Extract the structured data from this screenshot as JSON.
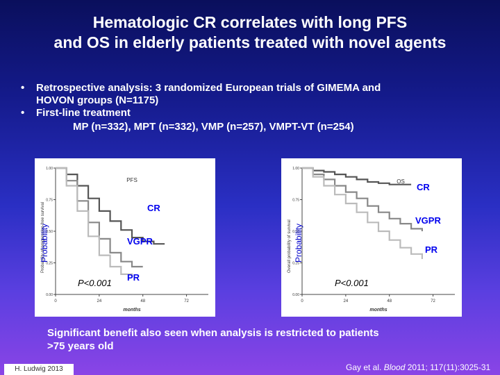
{
  "title_line1": "Hematologic CR correlates with long PFS",
  "title_line2": "and OS in elderly patients treated with novel agents",
  "bullets": {
    "b1_line1": "Retrospective analysis: 3 randomized European trials of GIMEMA and",
    "b1_line2": "HOVON groups (N=1175)",
    "b2": "First-line treatment",
    "b2_sub": "MP (n=332), MPT (n=332), VMP (n=257), VMPT-VT (n=254)"
  },
  "footer_line1": "Significant benefit also seen when analysis is restricted to patients",
  "footer_line2": ">75 years old",
  "author": "H. Ludwig 2013",
  "citation_pre": "Gay et al. ",
  "citation_journal": "Blood",
  "citation_post": " 2011; 117(11):3025-31",
  "colors": {
    "text_label": "#0000ee",
    "curve_cr": "#555555",
    "curve_vgpr": "#888888",
    "curve_pr": "#bbbbbb"
  },
  "chart_data": [
    {
      "type": "line",
      "title": "PFS",
      "ylabel": "Probability",
      "ylabel_inner": "Probability of progression-free survival",
      "xlabel": "months",
      "xticks": [
        "0",
        "24",
        "48",
        "72"
      ],
      "yticks": [
        "1.00",
        "0.75",
        "0.50",
        "0.25",
        "0.00"
      ],
      "ylim": [
        0,
        1
      ],
      "xlim": [
        0,
        84
      ],
      "pvalue": "P<0.001",
      "series": [
        {
          "name": "CR",
          "x": [
            0,
            6,
            12,
            18,
            24,
            30,
            36,
            42,
            48,
            54,
            60
          ],
          "y": [
            1.0,
            0.95,
            0.86,
            0.76,
            0.66,
            0.58,
            0.51,
            0.45,
            0.42,
            0.4,
            0.4
          ]
        },
        {
          "name": "VGPR",
          "x": [
            0,
            6,
            12,
            18,
            24,
            30,
            36,
            42,
            48
          ],
          "y": [
            1.0,
            0.9,
            0.74,
            0.57,
            0.44,
            0.33,
            0.26,
            0.22,
            0.22
          ]
        },
        {
          "name": "PR",
          "x": [
            0,
            6,
            12,
            18,
            24,
            30,
            36,
            42
          ],
          "y": [
            1.0,
            0.86,
            0.66,
            0.46,
            0.31,
            0.22,
            0.16,
            0.14
          ]
        }
      ]
    },
    {
      "type": "line",
      "title": "OS",
      "ylabel": "Probability",
      "ylabel_inner": "Overall probability of survival",
      "xlabel": "months",
      "xticks": [
        "0",
        "24",
        "48",
        "72"
      ],
      "yticks": [
        "1.00",
        "0.75",
        "0.50",
        "0.25",
        "0.00"
      ],
      "ylim": [
        0,
        1
      ],
      "xlim": [
        0,
        84
      ],
      "pvalue": "P<0.001",
      "series": [
        {
          "name": "CR",
          "x": [
            0,
            6,
            12,
            18,
            24,
            30,
            36,
            42,
            48,
            54,
            60
          ],
          "y": [
            1.0,
            0.98,
            0.97,
            0.95,
            0.93,
            0.91,
            0.89,
            0.88,
            0.87,
            0.87,
            0.87
          ]
        },
        {
          "name": "VGPR",
          "x": [
            0,
            6,
            12,
            18,
            24,
            30,
            36,
            42,
            48,
            54,
            60,
            66
          ],
          "y": [
            1.0,
            0.95,
            0.91,
            0.86,
            0.81,
            0.76,
            0.7,
            0.65,
            0.6,
            0.56,
            0.52,
            0.5
          ]
        },
        {
          "name": "PR",
          "x": [
            0,
            6,
            12,
            18,
            24,
            30,
            36,
            42,
            48,
            54,
            60,
            66
          ],
          "y": [
            1.0,
            0.93,
            0.86,
            0.79,
            0.72,
            0.65,
            0.57,
            0.5,
            0.43,
            0.37,
            0.32,
            0.28
          ]
        }
      ]
    }
  ]
}
